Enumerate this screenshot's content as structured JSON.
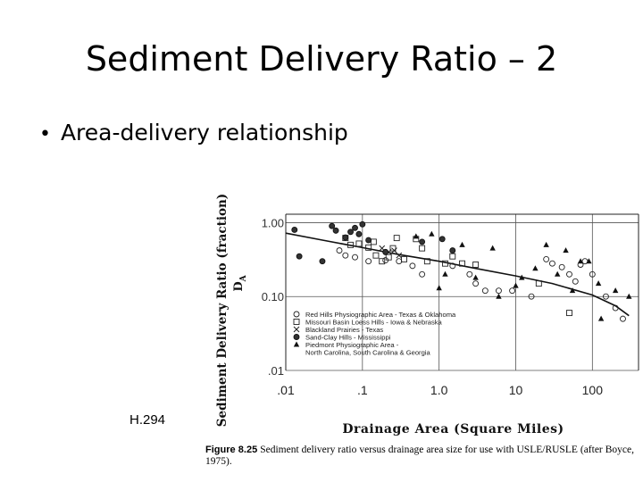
{
  "slide": {
    "title": "Sediment Delivery Ratio – 2",
    "bullet": "Area-delivery relationship",
    "reference": "H.294"
  },
  "figure": {
    "caption_label": "Figure 8.25",
    "caption_text": "Sediment delivery ratio versus drainage area size for use with USLE/RUSLE (after Boyce, 1975)."
  },
  "chart_data": {
    "type": "scatter",
    "x_scale": "log",
    "y_scale": "log",
    "xlim": [
      0.01,
      400
    ],
    "ylim": [
      0.01,
      1.3
    ],
    "grid": true,
    "xlabel": "Drainage Area (Square Miles)",
    "ylabel": "Sediment Delivery Ratio (fraction)",
    "ylabel_symbol": "D",
    "ylabel_subscript": "A",
    "xticks": [
      {
        "value": 0.01,
        "label": ".01"
      },
      {
        "value": 0.1,
        "label": ".1"
      },
      {
        "value": 1,
        "label": "1.0"
      },
      {
        "value": 10,
        "label": "10"
      },
      {
        "value": 100,
        "label": "100"
      }
    ],
    "yticks": [
      {
        "value": 1,
        "label": "1.00"
      },
      {
        "value": 0.1,
        "label": "0.10"
      },
      {
        "value": 0.01,
        "label": ".01"
      }
    ],
    "legend_position": "bottom-left",
    "series": [
      {
        "name": "Red Hills Physiographic Area - Texas & Oklahoma",
        "marker": "circle",
        "points": [
          [
            0.05,
            0.42
          ],
          [
            0.06,
            0.36
          ],
          [
            0.08,
            0.34
          ],
          [
            0.12,
            0.3
          ],
          [
            0.2,
            0.31
          ],
          [
            0.3,
            0.3
          ],
          [
            0.45,
            0.26
          ],
          [
            0.6,
            0.2
          ],
          [
            1.5,
            0.26
          ],
          [
            2.5,
            0.2
          ],
          [
            3,
            0.15
          ],
          [
            4,
            0.12
          ],
          [
            6,
            0.12
          ],
          [
            9,
            0.12
          ],
          [
            16,
            0.1
          ],
          [
            25,
            0.32
          ],
          [
            30,
            0.28
          ],
          [
            40,
            0.25
          ],
          [
            50,
            0.2
          ],
          [
            60,
            0.16
          ],
          [
            70,
            0.27
          ],
          [
            80,
            0.3
          ],
          [
            100,
            0.2
          ],
          [
            150,
            0.1
          ],
          [
            200,
            0.07
          ],
          [
            250,
            0.05
          ]
        ]
      },
      {
        "name": "Missouri Basin Loess Hills - Iowa & Nebraska",
        "marker": "square",
        "points": [
          [
            0.06,
            0.62
          ],
          [
            0.07,
            0.5
          ],
          [
            0.09,
            0.52
          ],
          [
            0.12,
            0.46
          ],
          [
            0.14,
            0.55
          ],
          [
            0.15,
            0.36
          ],
          [
            0.18,
            0.3
          ],
          [
            0.22,
            0.34
          ],
          [
            0.25,
            0.45
          ],
          [
            0.28,
            0.62
          ],
          [
            0.35,
            0.32
          ],
          [
            0.5,
            0.6
          ],
          [
            0.6,
            0.45
          ],
          [
            0.7,
            0.3
          ],
          [
            1.2,
            0.28
          ],
          [
            1.5,
            0.35
          ],
          [
            2,
            0.28
          ],
          [
            3,
            0.27
          ],
          [
            20,
            0.15
          ],
          [
            50,
            0.06
          ]
        ]
      },
      {
        "name": "Blackland Prairies - Texas",
        "marker": "x",
        "points": [
          [
            0.18,
            0.45
          ],
          [
            0.22,
            0.4
          ],
          [
            0.26,
            0.42
          ],
          [
            0.3,
            0.36
          ]
        ]
      },
      {
        "name": "Sand-Clay Hills - Mississippi",
        "marker": "filled-circle",
        "points": [
          [
            0.013,
            0.8
          ],
          [
            0.015,
            0.35
          ],
          [
            0.03,
            0.3
          ],
          [
            0.04,
            0.9
          ],
          [
            0.045,
            0.78
          ],
          [
            0.06,
            0.63
          ],
          [
            0.07,
            0.75
          ],
          [
            0.08,
            0.85
          ],
          [
            0.09,
            0.7
          ],
          [
            0.1,
            0.95
          ],
          [
            0.12,
            0.58
          ],
          [
            0.2,
            0.4
          ],
          [
            0.6,
            0.55
          ],
          [
            1.1,
            0.6
          ],
          [
            1.5,
            0.42
          ]
        ]
      },
      {
        "name": "Piedmont Physiographic Area - North Carolina, South Carolina & Georgia",
        "marker": "triangle",
        "points": [
          [
            0.5,
            0.65
          ],
          [
            0.8,
            0.7
          ],
          [
            2,
            0.5
          ],
          [
            5,
            0.45
          ],
          [
            1,
            0.13
          ],
          [
            1.2,
            0.2
          ],
          [
            3,
            0.18
          ],
          [
            6,
            0.1
          ],
          [
            10,
            0.14
          ],
          [
            12,
            0.18
          ],
          [
            18,
            0.24
          ],
          [
            25,
            0.5
          ],
          [
            35,
            0.2
          ],
          [
            45,
            0.42
          ],
          [
            55,
            0.12
          ],
          [
            70,
            0.3
          ],
          [
            90,
            0.3
          ],
          [
            120,
            0.15
          ],
          [
            130,
            0.05
          ],
          [
            200,
            0.12
          ],
          [
            300,
            0.1
          ]
        ]
      }
    ],
    "fit_line": [
      [
        0.01,
        0.72
      ],
      [
        0.03,
        0.58
      ],
      [
        0.1,
        0.46
      ],
      [
        0.3,
        0.37
      ],
      [
        1,
        0.3
      ],
      [
        3,
        0.24
      ],
      [
        10,
        0.19
      ],
      [
        30,
        0.15
      ],
      [
        100,
        0.105
      ],
      [
        200,
        0.075
      ],
      [
        300,
        0.055
      ]
    ]
  }
}
